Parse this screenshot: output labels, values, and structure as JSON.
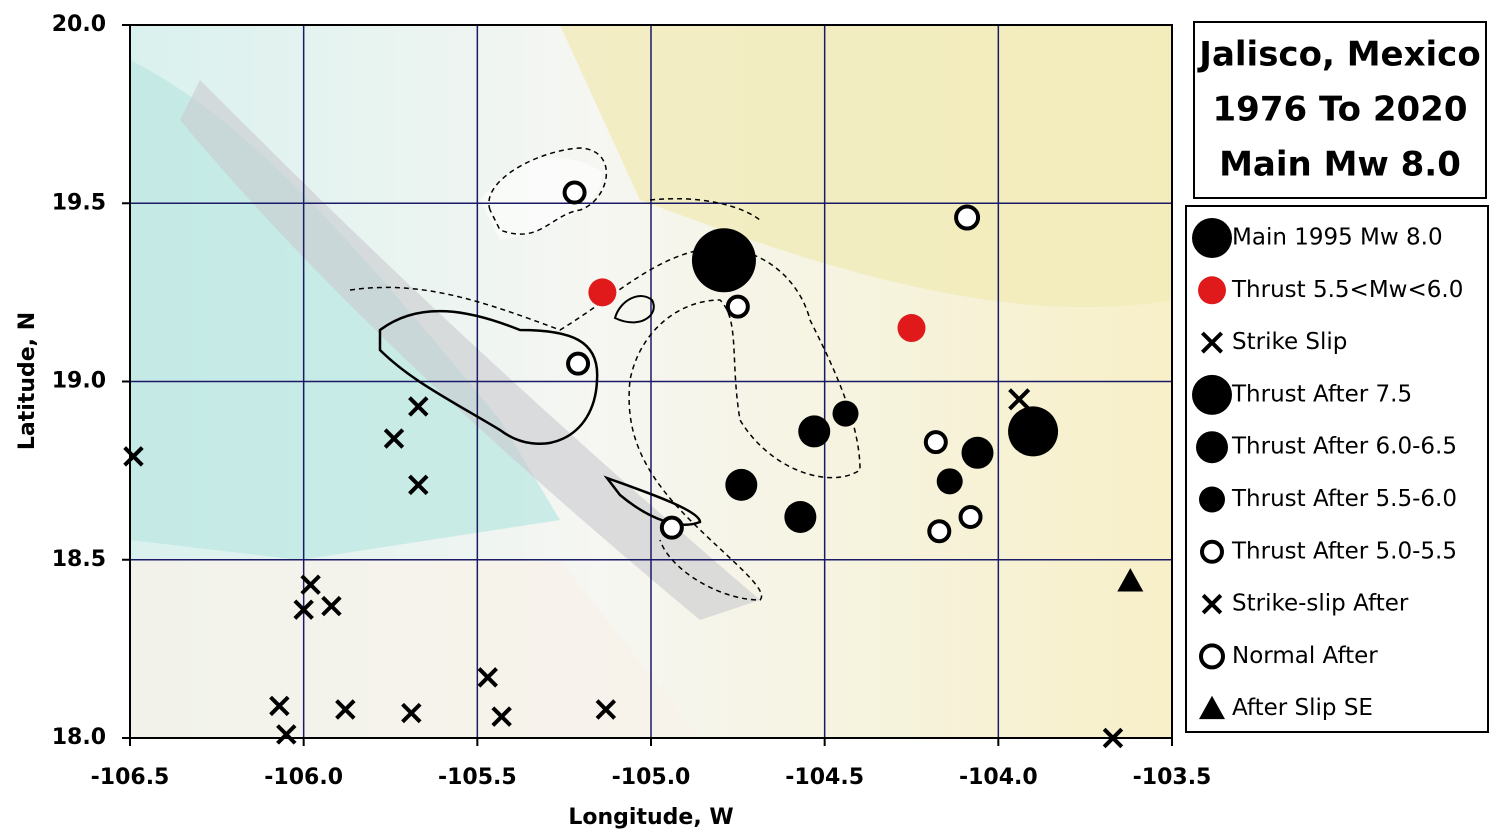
{
  "chart_data": {
    "type": "scatter",
    "title": [
      "Jalisco, Mexico",
      "1976 To 2020",
      "Main Mw 8.0"
    ],
    "xlabel": "Longitude, W",
    "ylabel": "Latitude, N",
    "xlim": [
      -106.5,
      -103.5
    ],
    "ylim": [
      18.0,
      20.0
    ],
    "xticks": [
      -106.5,
      {
        "value": -106,
        "label": "-106.0"
      },
      -105.5,
      {
        "value": -105,
        "label": "-105.0"
      },
      -104.5,
      {
        "value": -104,
        "label": "-104.0"
      },
      -103.5
    ],
    "yticks": [
      {
        "value": 18,
        "label": "18.0"
      },
      18.5,
      {
        "value": 19,
        "label": "19.0"
      },
      19.5,
      {
        "value": 20,
        "label": "20.0"
      }
    ],
    "grid": true,
    "grid_color": "#1a1a66",
    "legend_position": "right",
    "series": [
      {
        "name": "Main 1995 Mw 8.0",
        "color": "#000000",
        "marker": "circle",
        "marker_size": 32,
        "x": [
          -104.79
        ],
        "y": [
          19.34
        ]
      },
      {
        "name": "Thrust 5.5<Mw<6.0",
        "color": "#e0191b",
        "marker": "circle",
        "marker_size": 14,
        "x": [
          -105.14,
          -104.25
        ],
        "y": [
          19.25,
          19.15
        ]
      },
      {
        "name": "Strike Slip",
        "color": "#000000",
        "marker": "x",
        "marker_size": 12,
        "x": [
          -103.94
        ],
        "y": [
          18.95
        ]
      },
      {
        "name": "Thrust After 7.5",
        "color": "#000000",
        "marker": "circle",
        "marker_size": 25,
        "x": [
          -103.9
        ],
        "y": [
          18.86
        ]
      },
      {
        "name": "Thrust After 6.0-6.5",
        "color": "#000000",
        "marker": "circle",
        "marker_size": 16,
        "x": [
          -104.53,
          -104.74,
          -104.57,
          -104.06
        ],
        "y": [
          18.86,
          18.71,
          18.62,
          18.8
        ]
      },
      {
        "name": "Thrust After 5.5-6.0",
        "color": "#000000",
        "marker": "circle",
        "marker_size": 13,
        "x": [
          -104.44,
          -104.14
        ],
        "y": [
          18.91,
          18.72
        ]
      },
      {
        "name": "Thrust After 5.0-5.5",
        "color": "#000000",
        "marker": "ring",
        "marker_size": 10,
        "x": [
          -105.22,
          -105.21,
          -104.75,
          -104.18,
          -104.17,
          -104.08,
          -104.94
        ],
        "y": [
          19.53,
          19.05,
          19.21,
          18.83,
          18.58,
          18.62,
          18.59
        ]
      },
      {
        "name": "Strike-slip After",
        "color": "#000000",
        "marker": "x",
        "marker_size": 11,
        "x": [
          -106.49,
          -105.74,
          -105.67,
          -105.67,
          -105.98,
          -106.0,
          -105.92,
          -106.07,
          -106.05,
          -105.88,
          -105.69,
          -105.47,
          -105.43,
          -105.13,
          -103.67
        ],
        "y": [
          18.79,
          18.84,
          18.93,
          18.71,
          18.43,
          18.36,
          18.37,
          18.09,
          18.01,
          18.08,
          18.07,
          18.17,
          18.06,
          18.08,
          18.0
        ]
      },
      {
        "name": "Normal After",
        "color": "#000000",
        "marker": "ring",
        "marker_size": 11,
        "x": [
          -104.09
        ],
        "y": [
          19.46
        ]
      },
      {
        "name": "After Slip SE",
        "color": "#000000",
        "marker": "triangle",
        "marker_size": 13,
        "x": [
          -103.62
        ],
        "y": [
          18.44
        ]
      }
    ]
  }
}
